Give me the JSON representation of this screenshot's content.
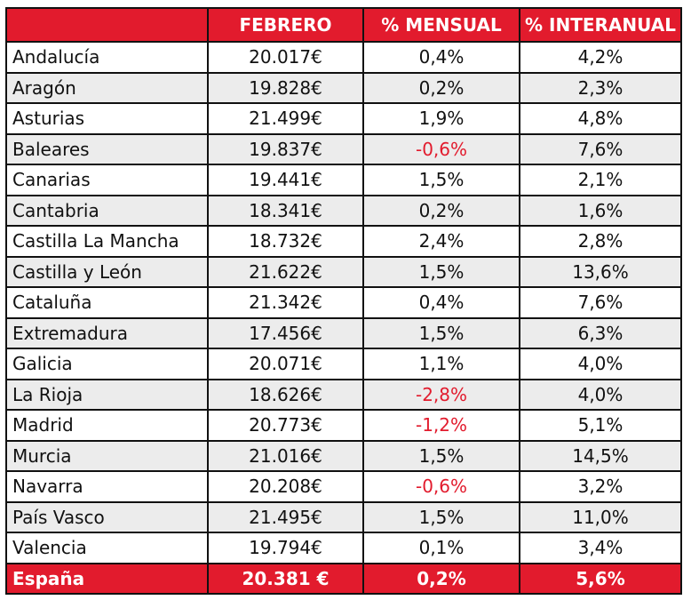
{
  "header": {
    "col_region": "",
    "col_febrero": "FEBRERO",
    "col_mensual": "% MENSUAL",
    "col_interanual": "% INTERANUAL"
  },
  "rows": [
    {
      "region": "Andalucía",
      "febrero": "20.017€",
      "mensual": "0,4%",
      "interanual": "4,2%",
      "mensual_negative": false
    },
    {
      "region": "Aragón",
      "febrero": "19.828€",
      "mensual": "0,2%",
      "interanual": "2,3%",
      "mensual_negative": false
    },
    {
      "region": "Asturias",
      "febrero": "21.499€",
      "mensual": "1,9%",
      "interanual": "4,8%",
      "mensual_negative": false
    },
    {
      "region": "Baleares",
      "febrero": "19.837€",
      "mensual": "-0,6%",
      "interanual": "7,6%",
      "mensual_negative": true
    },
    {
      "region": "Canarias",
      "febrero": "19.441€",
      "mensual": "1,5%",
      "interanual": "2,1%",
      "mensual_negative": false
    },
    {
      "region": "Cantabria",
      "febrero": "18.341€",
      "mensual": "0,2%",
      "interanual": "1,6%",
      "mensual_negative": false
    },
    {
      "region": "Castilla La Mancha",
      "febrero": "18.732€",
      "mensual": "2,4%",
      "interanual": "2,8%",
      "mensual_negative": false
    },
    {
      "region": "Castilla y León",
      "febrero": "21.622€",
      "mensual": "1,5%",
      "interanual": "13,6%",
      "mensual_negative": false
    },
    {
      "region": "Cataluña",
      "febrero": "21.342€",
      "mensual": "0,4%",
      "interanual": "7,6%",
      "mensual_negative": false
    },
    {
      "region": "Extremadura",
      "febrero": "17.456€",
      "mensual": "1,5%",
      "interanual": "6,3%",
      "mensual_negative": false
    },
    {
      "region": "Galicia",
      "febrero": "20.071€",
      "mensual": "1,1%",
      "interanual": "4,0%",
      "mensual_negative": false
    },
    {
      "region": "La Rioja",
      "febrero": "18.626€",
      "mensual": "-2,8%",
      "interanual": "4,0%",
      "mensual_negative": true
    },
    {
      "region": "Madrid",
      "febrero": "20.773€",
      "mensual": "-1,2%",
      "interanual": "5,1%",
      "mensual_negative": true
    },
    {
      "region": "Murcia",
      "febrero": "21.016€",
      "mensual": "1,5%",
      "interanual": "14,5%",
      "mensual_negative": false
    },
    {
      "region": "Navarra",
      "febrero": "20.208€",
      "mensual": "-0,6%",
      "interanual": "3,2%",
      "mensual_negative": true
    },
    {
      "region": "País Vasco",
      "febrero": "21.495€",
      "mensual": "1,5%",
      "interanual": "11,0%",
      "mensual_negative": false
    },
    {
      "region": "Valencia",
      "febrero": "19.794€",
      "mensual": "0,1%",
      "interanual": "3,4%",
      "mensual_negative": false
    }
  ],
  "total": {
    "region": "España",
    "febrero": "20.381 €",
    "mensual": "0,2%",
    "interanual": "5,6%"
  },
  "colors": {
    "accent_red": "#e21b2d",
    "negative_text": "#e21b2d",
    "alt_row_bg": "#ececec",
    "border": "#111111"
  }
}
